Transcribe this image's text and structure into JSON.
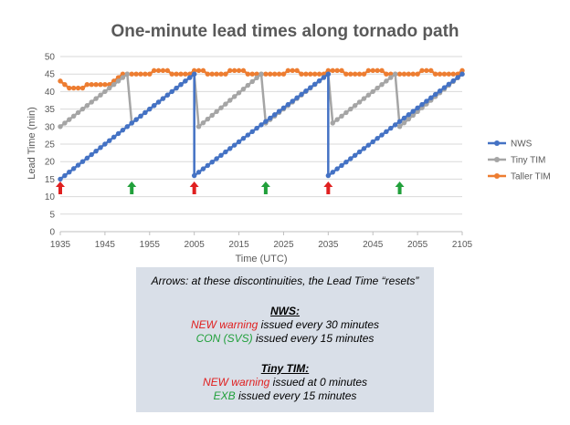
{
  "chart_data": {
    "type": "line",
    "title": "One-minute lead times along tornado path",
    "xlabel": "Time (UTC)",
    "ylabel": "Lead Time (min)",
    "ylim": [
      0,
      50
    ],
    "yticks": [
      "0",
      "5",
      "10",
      "15",
      "20",
      "25",
      "30",
      "35",
      "40",
      "45",
      "50"
    ],
    "xticks": [
      "1935",
      "1945",
      "1955",
      "2005",
      "2015",
      "2025",
      "2035",
      "2045",
      "2055",
      "2105"
    ],
    "grid": "horizontal",
    "legend_position": "right",
    "colors": {
      "NWS": "#4472c4",
      "Tiny TIM": "#a5a5a5",
      "Taller TIM": "#ed7d31"
    },
    "series": [
      {
        "name": "NWS",
        "x": [
          0,
          30,
          30,
          60,
          60,
          90
        ],
        "values": [
          15,
          45,
          16,
          45,
          16,
          45
        ],
        "note": "piecewise linear, one point per minute"
      },
      {
        "name": "Tiny TIM",
        "x": [
          0,
          15,
          16,
          30,
          31,
          45,
          46,
          60,
          61,
          75,
          76,
          90
        ],
        "values": [
          30,
          45,
          31,
          45,
          30,
          45,
          31,
          45,
          31,
          45,
          30,
          45
        ]
      },
      {
        "name": "Taller TIM",
        "points_per_minute": [
          43,
          42,
          41,
          41,
          41,
          41,
          42,
          42,
          42,
          42,
          42,
          42,
          43,
          44,
          45,
          45,
          45,
          45,
          45,
          45,
          45,
          46,
          46,
          46,
          46,
          45,
          45,
          45,
          45,
          45,
          46,
          46,
          46,
          45,
          45,
          45,
          45,
          45,
          46,
          46,
          46,
          46,
          45,
          45,
          45,
          45,
          45,
          45,
          45,
          45,
          45,
          46,
          46,
          46,
          45,
          45,
          45,
          45,
          45,
          45,
          46,
          46,
          46,
          46,
          45,
          45,
          45,
          45,
          45,
          46,
          46,
          46,
          46,
          45,
          45,
          45,
          45,
          45,
          45,
          45,
          45,
          46,
          46,
          46,
          45,
          45,
          45,
          45,
          45,
          45,
          46
        ]
      }
    ],
    "arrows": [
      {
        "x": 0,
        "color": "red"
      },
      {
        "x": 16,
        "color": "green"
      },
      {
        "x": 30,
        "color": "red"
      },
      {
        "x": 46,
        "color": "green"
      },
      {
        "x": 60,
        "color": "red"
      },
      {
        "x": 76,
        "color": "green"
      }
    ]
  },
  "note": {
    "header": "Arrows:  at these discontinuities, the Lead Time “resets”",
    "nws_title": "NWS:",
    "nws_line1_highlight": "NEW warning",
    "nws_line1_rest": " issued every 30 minutes",
    "nws_line2_highlight": "CON (SVS)",
    "nws_line2_rest": " issued every 15 minutes",
    "tim_title": "Tiny TIM:",
    "tim_line1_highlight": "NEW warning",
    "tim_line1_rest": " issued at 0 minutes",
    "tim_line2_highlight": "EXB",
    "tim_line2_rest": " issued every 15 minutes"
  }
}
